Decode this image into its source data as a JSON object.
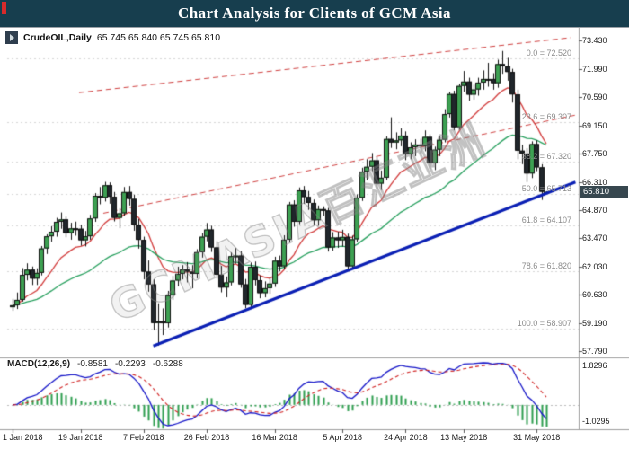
{
  "titlebar": {
    "title": "Chart Analysis for Clients of GCM Asia"
  },
  "quote_bar": {
    "symbol": "CrudeOIL,Daily",
    "ohlc": "65.745 65.840 65.745 65.810"
  },
  "watermark": "GCMASIA百汇亚洲",
  "price_badge": "65.810",
  "macd_panel": {
    "label": "MACD(12,26,9)",
    "values": [
      "-0.8581",
      "-0.2293",
      "-0.6288"
    ],
    "axis_max": "1.8296",
    "axis_min": "-1.0295"
  },
  "colors": {
    "titlebar_bg": "#173e4e",
    "bull": "#3da052",
    "bear": "#20262b",
    "macd_line": "#1515c8",
    "macd_signal": "#d02020",
    "macd_hist": "#2e9e4f",
    "badge_bg": "#37474f"
  },
  "chart_data": {
    "type": "candlestick",
    "symbol": "CrudeOIL",
    "timeframe": "Daily",
    "current_price": 65.81,
    "price_range": {
      "min": 57.79,
      "max": 73.43
    },
    "y_axis_labels": [
      "73.430",
      "71.990",
      "70.590",
      "69.150",
      "67.750",
      "66.310",
      "64.870",
      "63.470",
      "62.030",
      "60.630",
      "59.190",
      "57.790"
    ],
    "x_axis_labels": [
      {
        "label": "1 Jan 2018",
        "index": 0
      },
      {
        "label": "19 Jan 2018",
        "index": 14
      },
      {
        "label": "7 Feb 2018",
        "index": 27
      },
      {
        "label": "26 Feb 2018",
        "index": 40
      },
      {
        "label": "16 Mar 2018",
        "index": 54
      },
      {
        "label": "5 Apr 2018",
        "index": 68
      },
      {
        "label": "24 Apr 2018",
        "index": 81
      },
      {
        "label": "13 May 2018",
        "index": 93
      },
      {
        "label": "31 May 2018",
        "index": 108
      }
    ],
    "fib_levels": [
      {
        "text": "0.0 = 72.520",
        "price": 72.52
      },
      {
        "text": "23.6 = 69.307",
        "price": 69.307
      },
      {
        "text": "38.2 = 67.320",
        "price": 67.32
      },
      {
        "text": "50.0 = 65.713",
        "price": 65.713
      },
      {
        "text": "61.8 = 64.107",
        "price": 64.107
      },
      {
        "text": "78.6 = 61.820",
        "price": 61.82
      },
      {
        "text": "100.0 = 58.907",
        "price": 58.907
      }
    ],
    "trend_lines": [
      {
        "name": "resistance-upper",
        "style": "dashed",
        "color": "#d04040",
        "width": 1,
        "from": {
          "index": 13.7,
          "price": 70.8
        },
        "to": {
          "index": 115,
          "price": 73.57
        }
      },
      {
        "name": "resistance-lower",
        "style": "dashed",
        "color": "#d04040",
        "width": 1,
        "from": {
          "index": 18.7,
          "price": 64.73
        },
        "to": {
          "index": 116,
          "price": 69.67
        }
      },
      {
        "name": "support",
        "style": "solid",
        "color": "#0a1fb4",
        "width": 3,
        "from": {
          "index": 29,
          "price": 58.05
        },
        "to": {
          "index": 116,
          "price": 66.3
        }
      }
    ],
    "moving_averages": [
      {
        "type": "ema",
        "period": 13,
        "color": "#d23b3b"
      },
      {
        "type": "ema",
        "period": 40,
        "color": "#27a05e"
      }
    ],
    "macd": {
      "fast": 12,
      "slow": 26,
      "signal": 9,
      "current": {
        "macd": -0.8581,
        "signal": -0.2293,
        "histogram": -0.6288
      }
    },
    "candles": [
      [
        60.0,
        60.42,
        59.82,
        60.1
      ],
      [
        60.1,
        60.74,
        59.91,
        60.37
      ],
      [
        60.37,
        61.97,
        60.28,
        61.63
      ],
      [
        61.63,
        62.21,
        61.35,
        61.89
      ],
      [
        61.89,
        62.05,
        61.12,
        61.44
      ],
      [
        61.44,
        61.96,
        61.12,
        61.73
      ],
      [
        61.73,
        63.08,
        61.6,
        62.96
      ],
      [
        62.96,
        63.67,
        62.68,
        63.57
      ],
      [
        63.57,
        64.08,
        63.3,
        63.8
      ],
      [
        63.8,
        64.5,
        63.55,
        64.3
      ],
      [
        64.3,
        64.77,
        63.95,
        64.42
      ],
      [
        64.42,
        64.56,
        63.52,
        63.73
      ],
      [
        63.73,
        64.25,
        63.4,
        63.97
      ],
      [
        63.97,
        64.31,
        63.6,
        63.95
      ],
      [
        63.95,
        64.15,
        63.1,
        63.37
      ],
      [
        63.37,
        63.84,
        63.06,
        63.57
      ],
      [
        63.57,
        64.65,
        63.4,
        64.47
      ],
      [
        64.47,
        65.74,
        64.3,
        65.61
      ],
      [
        65.61,
        66.05,
        65.18,
        65.51
      ],
      [
        65.51,
        66.31,
        65.32,
        66.14
      ],
      [
        66.14,
        66.28,
        65.21,
        65.56
      ],
      [
        65.56,
        65.8,
        64.32,
        64.5
      ],
      [
        64.5,
        64.98,
        63.98,
        64.73
      ],
      [
        64.73,
        66.05,
        64.6,
        65.8
      ],
      [
        65.8,
        66.1,
        65.12,
        65.45
      ],
      [
        65.45,
        65.66,
        63.85,
        64.15
      ],
      [
        64.15,
        64.45,
        62.95,
        63.39
      ],
      [
        63.39,
        63.55,
        61.4,
        61.79
      ],
      [
        61.79,
        62.35,
        60.78,
        61.15
      ],
      [
        61.15,
        61.4,
        58.85,
        59.2
      ],
      [
        59.2,
        60.2,
        58.07,
        59.29
      ],
      [
        59.29,
        59.94,
        58.6,
        59.19
      ],
      [
        59.19,
        60.82,
        58.98,
        60.6
      ],
      [
        60.6,
        61.58,
        60.37,
        61.34
      ],
      [
        61.34,
        62.04,
        61.05,
        61.68
      ],
      [
        61.68,
        62.12,
        61.4,
        61.9
      ],
      [
        61.9,
        62.27,
        61.25,
        61.79
      ],
      [
        61.79,
        62.12,
        60.95,
        61.68
      ],
      [
        61.68,
        62.92,
        61.45,
        62.77
      ],
      [
        62.77,
        63.73,
        62.5,
        63.55
      ],
      [
        63.55,
        64.24,
        63.32,
        63.91
      ],
      [
        63.91,
        64.1,
        62.78,
        63.01
      ],
      [
        63.01,
        63.32,
        61.44,
        61.64
      ],
      [
        61.64,
        62.08,
        60.75,
        60.99
      ],
      [
        60.99,
        61.55,
        60.5,
        61.25
      ],
      [
        61.25,
        62.75,
        61.1,
        62.57
      ],
      [
        62.57,
        62.98,
        62.2,
        62.6
      ],
      [
        62.6,
        62.82,
        60.98,
        61.15
      ],
      [
        61.15,
        61.42,
        59.95,
        60.12
      ],
      [
        60.12,
        62.25,
        59.98,
        62.04
      ],
      [
        62.04,
        62.3,
        61.1,
        61.36
      ],
      [
        61.36,
        61.6,
        60.45,
        60.71
      ],
      [
        60.71,
        61.3,
        60.5,
        60.96
      ],
      [
        60.96,
        61.48,
        60.68,
        61.19
      ],
      [
        61.19,
        62.54,
        61.02,
        62.34
      ],
      [
        62.34,
        62.6,
        61.8,
        62.06
      ],
      [
        62.06,
        63.62,
        61.92,
        63.4
      ],
      [
        63.4,
        65.3,
        63.25,
        65.17
      ],
      [
        65.17,
        65.38,
        64.05,
        64.3
      ],
      [
        64.3,
        66.03,
        64.18,
        65.88
      ],
      [
        65.88,
        66.1,
        65.2,
        65.55
      ],
      [
        65.55,
        65.85,
        64.9,
        65.25
      ],
      [
        65.25,
        65.42,
        64.15,
        64.38
      ],
      [
        64.38,
        65.12,
        64.1,
        64.94
      ],
      [
        64.94,
        65.08,
        64.6,
        64.87
      ],
      [
        64.87,
        65.0,
        62.8,
        63.01
      ],
      [
        63.01,
        63.78,
        62.85,
        63.51
      ],
      [
        63.51,
        63.8,
        62.99,
        63.37
      ],
      [
        63.37,
        63.9,
        63.05,
        63.54
      ],
      [
        63.54,
        63.7,
        61.81,
        62.06
      ],
      [
        62.06,
        63.6,
        61.95,
        63.42
      ],
      [
        63.42,
        65.68,
        63.3,
        65.51
      ],
      [
        65.51,
        67.02,
        65.35,
        66.82
      ],
      [
        66.82,
        67.45,
        66.4,
        67.07
      ],
      [
        67.07,
        67.76,
        66.85,
        67.39
      ],
      [
        67.39,
        67.55,
        65.95,
        66.22
      ],
      [
        66.22,
        66.88,
        65.9,
        66.52
      ],
      [
        66.52,
        68.6,
        66.4,
        68.47
      ],
      [
        68.47,
        69.56,
        68.02,
        68.29
      ],
      [
        68.29,
        68.8,
        67.95,
        68.4
      ],
      [
        68.4,
        69.0,
        68.1,
        68.64
      ],
      [
        68.64,
        68.85,
        67.4,
        67.7
      ],
      [
        67.7,
        68.3,
        67.45,
        68.05
      ],
      [
        68.05,
        68.45,
        67.6,
        68.19
      ],
      [
        68.19,
        68.48,
        67.7,
        68.1
      ],
      [
        68.1,
        68.9,
        67.85,
        68.57
      ],
      [
        68.57,
        68.7,
        66.95,
        67.25
      ],
      [
        67.25,
        68.08,
        66.9,
        67.93
      ],
      [
        67.93,
        68.62,
        67.6,
        68.43
      ],
      [
        68.43,
        69.97,
        68.3,
        69.72
      ],
      [
        69.72,
        70.84,
        69.55,
        70.73
      ],
      [
        70.73,
        70.9,
        68.9,
        69.06
      ],
      [
        69.06,
        71.25,
        68.95,
        71.14
      ],
      [
        71.14,
        71.89,
        70.85,
        71.36
      ],
      [
        71.36,
        71.55,
        70.4,
        70.7
      ],
      [
        70.7,
        71.2,
        70.45,
        70.96
      ],
      [
        70.96,
        71.55,
        70.65,
        71.31
      ],
      [
        71.31,
        71.92,
        70.95,
        71.49
      ],
      [
        71.49,
        72.3,
        71.1,
        71.49
      ],
      [
        71.49,
        71.78,
        70.95,
        71.28
      ],
      [
        71.28,
        72.46,
        71.05,
        72.24
      ],
      [
        72.24,
        72.9,
        71.75,
        72.13
      ],
      [
        72.13,
        72.55,
        71.4,
        71.84
      ],
      [
        71.84,
        72.0,
        70.3,
        70.71
      ],
      [
        70.71,
        70.95,
        67.45,
        67.88
      ],
      [
        67.88,
        68.18,
        67.2,
        67.73
      ],
      [
        67.73,
        68.0,
        66.3,
        66.73
      ],
      [
        66.73,
        68.35,
        66.5,
        68.21
      ],
      [
        68.21,
        68.4,
        66.85,
        67.04
      ],
      [
        67.04,
        67.2,
        65.4,
        65.81
      ],
      [
        65.745,
        65.84,
        65.745,
        65.81
      ]
    ]
  }
}
